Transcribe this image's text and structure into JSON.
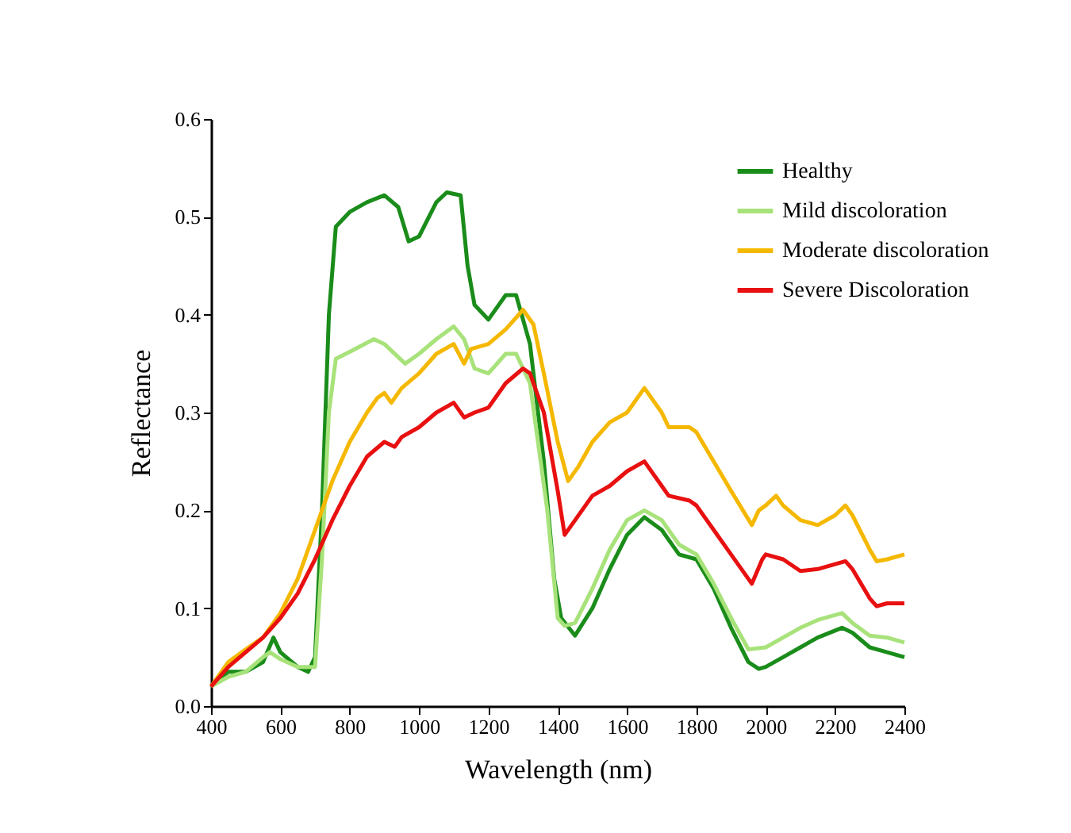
{
  "chart_data": {
    "type": "line",
    "xlabel": "Wavelength (nm)",
    "ylabel": "Reflectance",
    "xlim": [
      400,
      2400
    ],
    "ylim": [
      0,
      0.6
    ],
    "xticks": [
      400,
      600,
      800,
      1000,
      1200,
      1400,
      1600,
      1800,
      2000,
      2200,
      2400
    ],
    "yticks": [
      {
        "value": 0,
        "label": "0.0"
      },
      {
        "value": 0.1,
        "label": "0.1"
      },
      {
        "value": 0.2,
        "label": "0.2"
      },
      {
        "value": 0.3,
        "label": "0.3"
      },
      {
        "value": 0.4,
        "label": "0.4"
      },
      {
        "value": 0.5,
        "label": "0.5"
      },
      {
        "value": 0.6,
        "label": "0.6"
      }
    ],
    "grid": false,
    "legend": "top right",
    "marker": "none",
    "line_style": "solid",
    "series": [
      {
        "name": "Healthy",
        "color": "#1a8c1a",
        "x": [
          400,
          450,
          500,
          550,
          580,
          600,
          650,
          680,
          700,
          720,
          740,
          760,
          800,
          850,
          900,
          940,
          970,
          1000,
          1050,
          1080,
          1120,
          1140,
          1160,
          1200,
          1250,
          1280,
          1320,
          1360,
          1390,
          1410,
          1450,
          1500,
          1550,
          1600,
          1650,
          1700,
          1750,
          1800,
          1850,
          1900,
          1950,
          1980,
          2000,
          2050,
          2100,
          2150,
          2220,
          2250,
          2300,
          2350,
          2400
        ],
        "values": [
          0.02,
          0.035,
          0.035,
          0.045,
          0.07,
          0.055,
          0.04,
          0.035,
          0.05,
          0.2,
          0.4,
          0.49,
          0.505,
          0.515,
          0.522,
          0.51,
          0.475,
          0.48,
          0.515,
          0.525,
          0.522,
          0.45,
          0.41,
          0.395,
          0.42,
          0.42,
          0.37,
          0.25,
          0.13,
          0.09,
          0.072,
          0.1,
          0.14,
          0.175,
          0.193,
          0.18,
          0.155,
          0.15,
          0.12,
          0.08,
          0.045,
          0.038,
          0.04,
          0.05,
          0.06,
          0.07,
          0.08,
          0.075,
          0.06,
          0.055,
          0.05
        ]
      },
      {
        "name": "Mild discoloration",
        "color": "#a8e27a",
        "x": [
          400,
          450,
          500,
          550,
          570,
          600,
          650,
          700,
          720,
          740,
          760,
          800,
          870,
          900,
          960,
          1000,
          1050,
          1100,
          1130,
          1160,
          1200,
          1250,
          1280,
          1320,
          1370,
          1400,
          1420,
          1450,
          1500,
          1550,
          1600,
          1650,
          1700,
          1750,
          1800,
          1850,
          1900,
          1950,
          2000,
          2050,
          2100,
          2150,
          2220,
          2250,
          2300,
          2350,
          2400
        ],
        "values": [
          0.02,
          0.03,
          0.035,
          0.05,
          0.055,
          0.048,
          0.04,
          0.04,
          0.15,
          0.3,
          0.355,
          0.362,
          0.375,
          0.37,
          0.35,
          0.36,
          0.375,
          0.388,
          0.375,
          0.345,
          0.34,
          0.36,
          0.36,
          0.33,
          0.2,
          0.09,
          0.082,
          0.085,
          0.12,
          0.16,
          0.19,
          0.2,
          0.19,
          0.165,
          0.155,
          0.125,
          0.09,
          0.058,
          0.06,
          0.07,
          0.08,
          0.088,
          0.095,
          0.085,
          0.072,
          0.07,
          0.065
        ]
      },
      {
        "name": "Moderate discoloration",
        "color": "#f5b800",
        "x": [
          400,
          450,
          500,
          550,
          600,
          650,
          700,
          750,
          800,
          850,
          880,
          900,
          920,
          950,
          1000,
          1050,
          1100,
          1130,
          1150,
          1200,
          1250,
          1300,
          1330,
          1360,
          1400,
          1430,
          1460,
          1500,
          1550,
          1600,
          1650,
          1700,
          1720,
          1780,
          1800,
          1850,
          1900,
          1960,
          1980,
          2000,
          2030,
          2050,
          2100,
          2150,
          2200,
          2230,
          2250,
          2300,
          2320,
          2350,
          2400
        ],
        "values": [
          0.02,
          0.045,
          0.058,
          0.07,
          0.095,
          0.13,
          0.18,
          0.23,
          0.27,
          0.3,
          0.315,
          0.32,
          0.31,
          0.325,
          0.34,
          0.36,
          0.37,
          0.35,
          0.365,
          0.37,
          0.385,
          0.405,
          0.39,
          0.34,
          0.27,
          0.23,
          0.245,
          0.27,
          0.29,
          0.3,
          0.325,
          0.3,
          0.285,
          0.285,
          0.28,
          0.25,
          0.22,
          0.185,
          0.2,
          0.205,
          0.215,
          0.205,
          0.19,
          0.185,
          0.195,
          0.205,
          0.195,
          0.16,
          0.148,
          0.15,
          0.155
        ]
      },
      {
        "name": "Severe Discoloration",
        "color": "#e81010",
        "x": [
          400,
          450,
          500,
          550,
          600,
          650,
          700,
          750,
          800,
          850,
          900,
          930,
          950,
          1000,
          1050,
          1100,
          1130,
          1160,
          1200,
          1250,
          1300,
          1320,
          1360,
          1400,
          1420,
          1440,
          1500,
          1550,
          1600,
          1650,
          1700,
          1720,
          1780,
          1800,
          1850,
          1900,
          1960,
          1990,
          2000,
          2050,
          2100,
          2150,
          2200,
          2230,
          2250,
          2300,
          2320,
          2350,
          2400
        ],
        "values": [
          0.02,
          0.04,
          0.055,
          0.07,
          0.09,
          0.115,
          0.15,
          0.19,
          0.225,
          0.255,
          0.27,
          0.265,
          0.275,
          0.285,
          0.3,
          0.31,
          0.295,
          0.3,
          0.305,
          0.33,
          0.345,
          0.34,
          0.3,
          0.22,
          0.175,
          0.185,
          0.215,
          0.225,
          0.24,
          0.25,
          0.225,
          0.215,
          0.21,
          0.205,
          0.18,
          0.155,
          0.125,
          0.15,
          0.155,
          0.15,
          0.138,
          0.14,
          0.145,
          0.148,
          0.14,
          0.11,
          0.102,
          0.105,
          0.105
        ]
      }
    ]
  }
}
